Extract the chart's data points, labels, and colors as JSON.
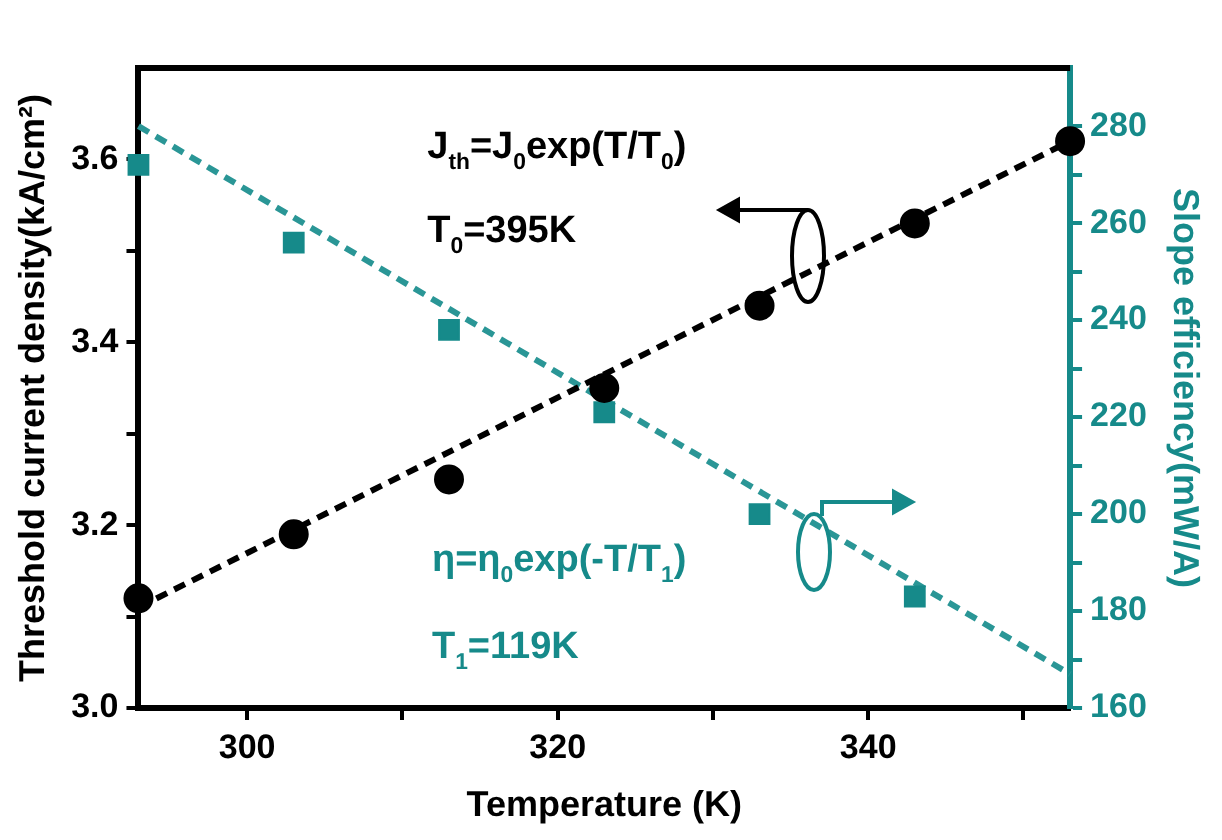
{
  "chart_data": {
    "type": "scatter",
    "xlabel": "Temperature (K)",
    "ylabel": "Threshold current density(kA/cm²)",
    "y2label": "Slope efficiency(mW/A)",
    "xlim": [
      293,
      353
    ],
    "xticks": [
      300,
      {
        "value": 310,
        "label": null
      },
      320,
      {
        "value": 330,
        "label": null
      },
      340,
      {
        "value": 350,
        "label": null
      }
    ],
    "ylim": [
      3.0,
      3.7
    ],
    "yticks": [
      {
        "value": 3.0,
        "label": "3.0"
      },
      {
        "value": 3.1,
        "label": null
      },
      3.2,
      {
        "value": 3.3,
        "label": null
      },
      3.4,
      {
        "value": 3.5,
        "label": null
      },
      3.6
    ],
    "y2lim": [
      160,
      292
    ],
    "y2ticks": [
      160,
      {
        "value": 170,
        "label": null
      },
      180,
      {
        "value": 190,
        "label": null
      },
      200,
      {
        "value": 210,
        "label": null
      },
      220,
      {
        "value": 230,
        "label": null
      },
      240,
      {
        "value": 250,
        "label": null
      },
      260,
      {
        "value": 270,
        "label": null
      },
      280
    ],
    "grid": false,
    "legend": false,
    "series": [
      {
        "type": "scatter",
        "color": "#000000",
        "marker": "circle",
        "x": [
          293,
          303,
          313,
          323,
          333,
          343,
          353
        ],
        "values": [
          3.12,
          3.19,
          3.25,
          3.35,
          3.44,
          3.53,
          3.62
        ]
      },
      {
        "type": "line",
        "color": "#000000",
        "marker": "none",
        "line_style": "dashed",
        "x": [
          293,
          353
        ],
        "values": [
          3.11,
          3.62
        ]
      },
      {
        "type": "scatter",
        "axis": "y2",
        "color": "#168a8a",
        "marker": "square",
        "x": [
          293,
          303,
          313,
          323,
          333,
          343
        ],
        "values": [
          272,
          256,
          238,
          221,
          200,
          183
        ]
      },
      {
        "type": "line",
        "axis": "y2",
        "color": "#2a9696",
        "marker": "none",
        "line_style": "dashed",
        "x": [
          293,
          353
        ],
        "values": [
          280,
          167
        ]
      }
    ],
    "annotations": [
      "J$_{th}$=J$_{0}$exp(T/T$_{0}$)",
      "T$_{0}$=395K",
      "η=η$_{0}$exp(-T/T$_{1}$)",
      "T$_{1}$=119K"
    ]
  }
}
